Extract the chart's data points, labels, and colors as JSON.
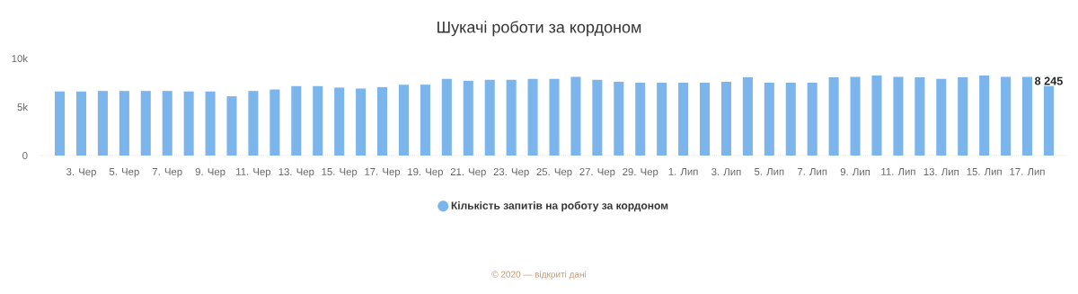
{
  "chart_data": {
    "type": "bar",
    "title": "Шукачі роботи за кордоном",
    "categories": [
      null,
      "3. Чер",
      null,
      "5. Чер",
      null,
      "7. Чер",
      null,
      "9. Чер",
      null,
      "11. Чер",
      null,
      "13. Чер",
      null,
      "15. Чер",
      null,
      "17. Чер",
      null,
      "19. Чер",
      null,
      "21. Чер",
      null,
      "23. Чер",
      null,
      "25. Чер",
      null,
      "27. Чер",
      null,
      "29. Чер",
      null,
      "1. Лип",
      null,
      "3. Лип",
      null,
      "5. Лип",
      null,
      "7. Лип",
      null,
      "9. Лип",
      null,
      "11. Лип",
      null,
      "13. Лип",
      null,
      "15. Лип",
      null,
      "17. Лип",
      null
    ],
    "series": [
      {
        "name": "Кількість запитів на роботу за кордоном",
        "color": "#7cb5ec",
        "values": [
          6600,
          6600,
          6650,
          6650,
          6650,
          6650,
          6600,
          6600,
          6100,
          6650,
          6800,
          7150,
          7150,
          7000,
          6900,
          7050,
          7300,
          7300,
          7900,
          7700,
          7800,
          7800,
          7900,
          7900,
          8100,
          7800,
          7600,
          7500,
          7500,
          7500,
          7500,
          7600,
          8050,
          7500,
          7500,
          7500,
          8050,
          8100,
          8250,
          8100,
          8050,
          7900,
          8050,
          8250,
          8100,
          8100,
          8245
        ],
        "value_labels": [
          null,
          null,
          null,
          null,
          null,
          null,
          null,
          null,
          null,
          null,
          null,
          null,
          null,
          null,
          null,
          null,
          null,
          null,
          null,
          null,
          null,
          null,
          null,
          null,
          null,
          null,
          null,
          null,
          null,
          null,
          null,
          null,
          null,
          null,
          null,
          null,
          null,
          null,
          null,
          null,
          null,
          null,
          null,
          null,
          null,
          null,
          "8 245"
        ]
      }
    ],
    "ylim": [
      0,
      10000
    ],
    "yticks": [
      0,
      {
        "value": 5000,
        "label": "5k"
      },
      {
        "value": 10000,
        "label": "10k"
      }
    ],
    "grid": false,
    "legend": "bottom",
    "annotations": [
      "© 2020 — відкриті дані"
    ]
  }
}
